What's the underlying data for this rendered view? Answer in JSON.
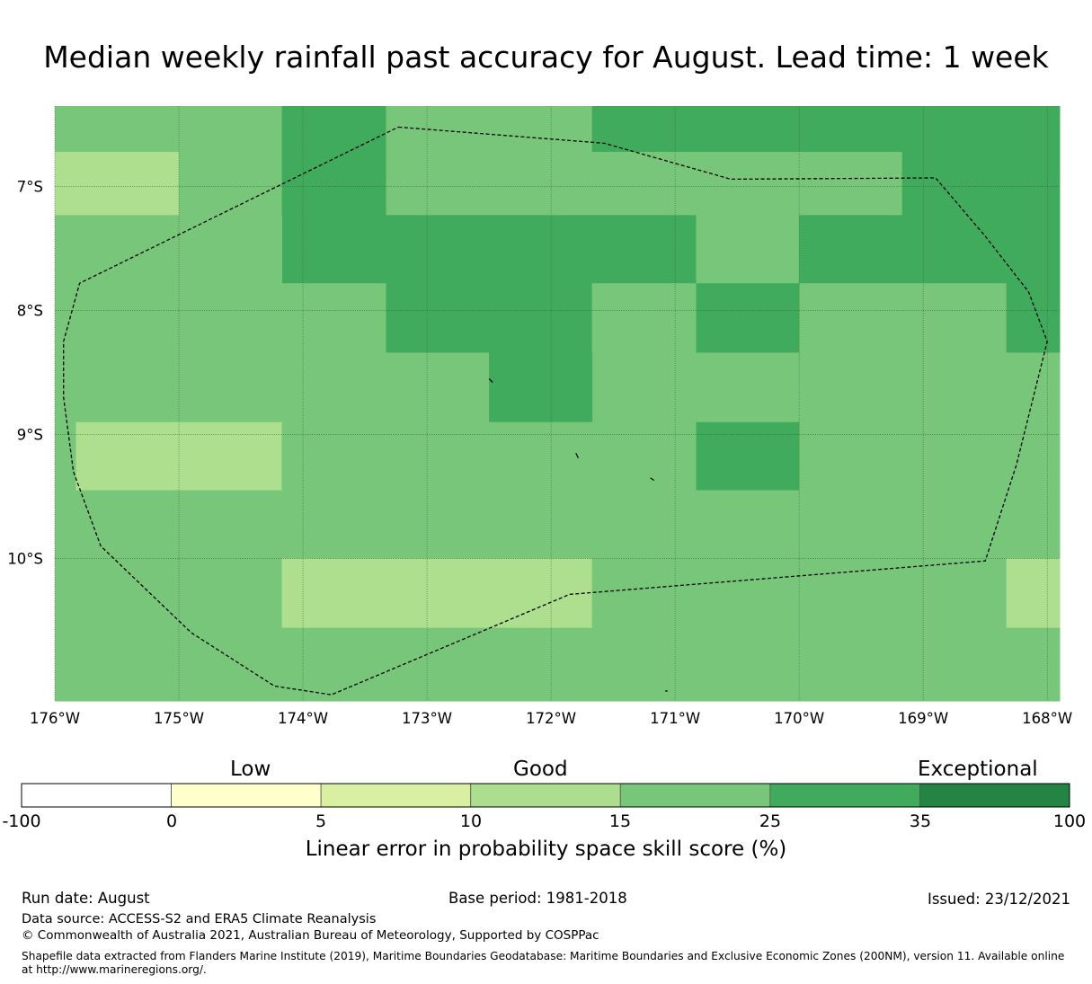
{
  "title": "Median weekly rainfall past accuracy for August. Lead time: 1 week",
  "map": {
    "lat_labels": [
      "7°S",
      "8°S",
      "9°S",
      "10°S"
    ],
    "lon_labels": [
      "176°W",
      "175°W",
      "174°W",
      "173°W",
      "172°W",
      "171°W",
      "170°W",
      "169°W",
      "168°W"
    ],
    "lon_range": [
      -176,
      -167.9
    ],
    "lat_range": [
      -11.15,
      -6.35
    ],
    "colors": {
      "c1015": "#addf8e",
      "c1525": "#78c679",
      "c2535": "#41ab5d",
      "boundary": "#000000"
    },
    "grid_cells": [
      {
        "bin": "15-25",
        "lon": [
          -176,
          -174.17
        ],
        "lat": [
          -6.72,
          -6.35
        ]
      },
      {
        "bin": "10-15",
        "lon": [
          -176,
          -175.0
        ],
        "lat": [
          -7.23,
          -6.72
        ]
      },
      {
        "bin": "15-25",
        "lon": [
          -175.0,
          -174.17
        ],
        "lat": [
          -7.23,
          -6.72
        ]
      },
      {
        "bin": "25-35",
        "lon": [
          -174.17,
          -173.33
        ],
        "lat": [
          -7.78,
          -6.35
        ]
      },
      {
        "bin": "15-25",
        "lon": [
          -173.33,
          -171.67
        ],
        "lat": [
          -6.72,
          -6.35
        ]
      },
      {
        "bin": "25-35",
        "lon": [
          -171.67,
          -167.9
        ],
        "lat": [
          -6.72,
          -6.35
        ]
      },
      {
        "bin": "15-25",
        "lon": [
          -173.33,
          -169.17
        ],
        "lat": [
          -7.23,
          -6.72
        ]
      },
      {
        "bin": "25-35",
        "lon": [
          -169.17,
          -167.9
        ],
        "lat": [
          -7.23,
          -6.72
        ]
      },
      {
        "bin": "15-25",
        "lon": [
          -176,
          -174.17
        ],
        "lat": [
          -8.9,
          -7.23
        ]
      },
      {
        "bin": "25-35",
        "lon": [
          -173.33,
          -170.83
        ],
        "lat": [
          -7.78,
          -7.23
        ]
      },
      {
        "bin": "15-25",
        "lon": [
          -170.83,
          -170.0
        ],
        "lat": [
          -7.78,
          -7.23
        ]
      },
      {
        "bin": "25-35",
        "lon": [
          -170.0,
          -167.9
        ],
        "lat": [
          -7.78,
          -7.23
        ]
      },
      {
        "bin": "15-25",
        "lon": [
          -174.17,
          -173.33
        ],
        "lat": [
          -8.9,
          -7.78
        ]
      },
      {
        "bin": "25-35",
        "lon": [
          -173.33,
          -171.67
        ],
        "lat": [
          -8.34,
          -7.78
        ]
      },
      {
        "bin": "15-25",
        "lon": [
          -171.67,
          -170.83
        ],
        "lat": [
          -8.9,
          -7.78
        ]
      },
      {
        "bin": "25-35",
        "lon": [
          -170.83,
          -170.0
        ],
        "lat": [
          -8.34,
          -7.78
        ]
      },
      {
        "bin": "15-25",
        "lon": [
          -170.0,
          -168.33
        ],
        "lat": [
          -8.9,
          -7.78
        ]
      },
      {
        "bin": "25-35",
        "lon": [
          -168.33,
          -167.9
        ],
        "lat": [
          -8.34,
          -7.78
        ]
      },
      {
        "bin": "15-25",
        "lon": [
          -173.33,
          -172.5
        ],
        "lat": [
          -8.9,
          -8.34
        ]
      },
      {
        "bin": "25-35",
        "lon": [
          -172.5,
          -171.67
        ],
        "lat": [
          -8.9,
          -8.34
        ]
      },
      {
        "bin": "15-25",
        "lon": [
          -170.83,
          -170.0
        ],
        "lat": [
          -8.9,
          -8.34
        ]
      },
      {
        "bin": "15-25",
        "lon": [
          -168.33,
          -167.9
        ],
        "lat": [
          -8.9,
          -8.34
        ]
      },
      {
        "bin": "15-25",
        "lon": [
          -176,
          -175.83
        ],
        "lat": [
          -9.45,
          -8.9
        ]
      },
      {
        "bin": "10-15",
        "lon": [
          -175.83,
          -174.17
        ],
        "lat": [
          -9.45,
          -8.9
        ]
      },
      {
        "bin": "15-25",
        "lon": [
          -174.17,
          -170.83
        ],
        "lat": [
          -10.0,
          -8.9
        ]
      },
      {
        "bin": "25-35",
        "lon": [
          -170.83,
          -170.0
        ],
        "lat": [
          -9.45,
          -8.9
        ]
      },
      {
        "bin": "15-25",
        "lon": [
          -170.0,
          -167.9
        ],
        "lat": [
          -10.0,
          -8.9
        ]
      },
      {
        "bin": "15-25",
        "lon": [
          -176,
          -170.83
        ],
        "lat": [
          -10.0,
          -9.45
        ]
      },
      {
        "bin": "15-25",
        "lon": [
          -170.83,
          -170.0
        ],
        "lat": [
          -10.0,
          -9.45
        ]
      },
      {
        "bin": "15-25",
        "lon": [
          -176,
          -174.17
        ],
        "lat": [
          -11.15,
          -10.0
        ]
      },
      {
        "bin": "10-15",
        "lon": [
          -174.17,
          -171.67
        ],
        "lat": [
          -10.56,
          -10.0
        ]
      },
      {
        "bin": "15-25",
        "lon": [
          -174.17,
          -171.67
        ],
        "lat": [
          -11.15,
          -10.56
        ]
      },
      {
        "bin": "15-25",
        "lon": [
          -171.67,
          -168.33
        ],
        "lat": [
          -11.15,
          -10.0
        ]
      },
      {
        "bin": "10-15",
        "lon": [
          -168.33,
          -167.9
        ],
        "lat": [
          -10.56,
          -10.0
        ]
      },
      {
        "bin": "15-25",
        "lon": [
          -168.33,
          -167.9
        ],
        "lat": [
          -11.15,
          -10.56
        ]
      }
    ],
    "eez_boundary": [
      [
        -173.23,
        -6.52
      ],
      [
        -171.57,
        -6.65
      ],
      [
        -170.55,
        -6.94
      ],
      [
        -168.9,
        -6.93
      ],
      [
        -168.5,
        -7.4
      ],
      [
        -168.15,
        -7.85
      ],
      [
        -168.0,
        -8.25
      ],
      [
        -168.25,
        -9.25
      ],
      [
        -168.5,
        -10.02
      ],
      [
        -171.85,
        -10.29
      ],
      [
        -173.77,
        -11.1
      ],
      [
        -174.23,
        -11.03
      ],
      [
        -174.9,
        -10.6
      ],
      [
        -175.63,
        -9.9
      ],
      [
        -175.85,
        -9.3
      ],
      [
        -175.93,
        -8.7
      ],
      [
        -175.93,
        -8.25
      ],
      [
        -175.8,
        -7.78
      ],
      [
        -173.23,
        -6.52
      ]
    ]
  },
  "colorbar": {
    "words": [
      "Low",
      "Good",
      "Exceptional"
    ],
    "ticks": [
      "-100",
      "0",
      "5",
      "10",
      "15",
      "25",
      "35",
      "100"
    ],
    "colors": [
      "#ffffff",
      "#ffffcc",
      "#d9f0a3",
      "#addd8e",
      "#78c679",
      "#41ab5d",
      "#238443"
    ],
    "label": "Linear error in probability space skill score (%)"
  },
  "footer": {
    "run_date": "Run date: August",
    "base_period": "Base period: 1981-2018",
    "issued": "Issued: 23/12/2021",
    "data_source": "Data source: ACCESS-S2 and ERA5 Climate Reanalysis",
    "copyright": "© Commonwealth of Australia 2021, Australian Bureau of Meteorology, Supported by COSPPac",
    "shapefile": "Shapefile data extracted from Flanders Marine Institute (2019), Maritime Boundaries Geodatabase: Maritime Boundaries and Exclusive Economic Zones (200NM), version 11. Available online at http://www.marineregions.org/."
  }
}
